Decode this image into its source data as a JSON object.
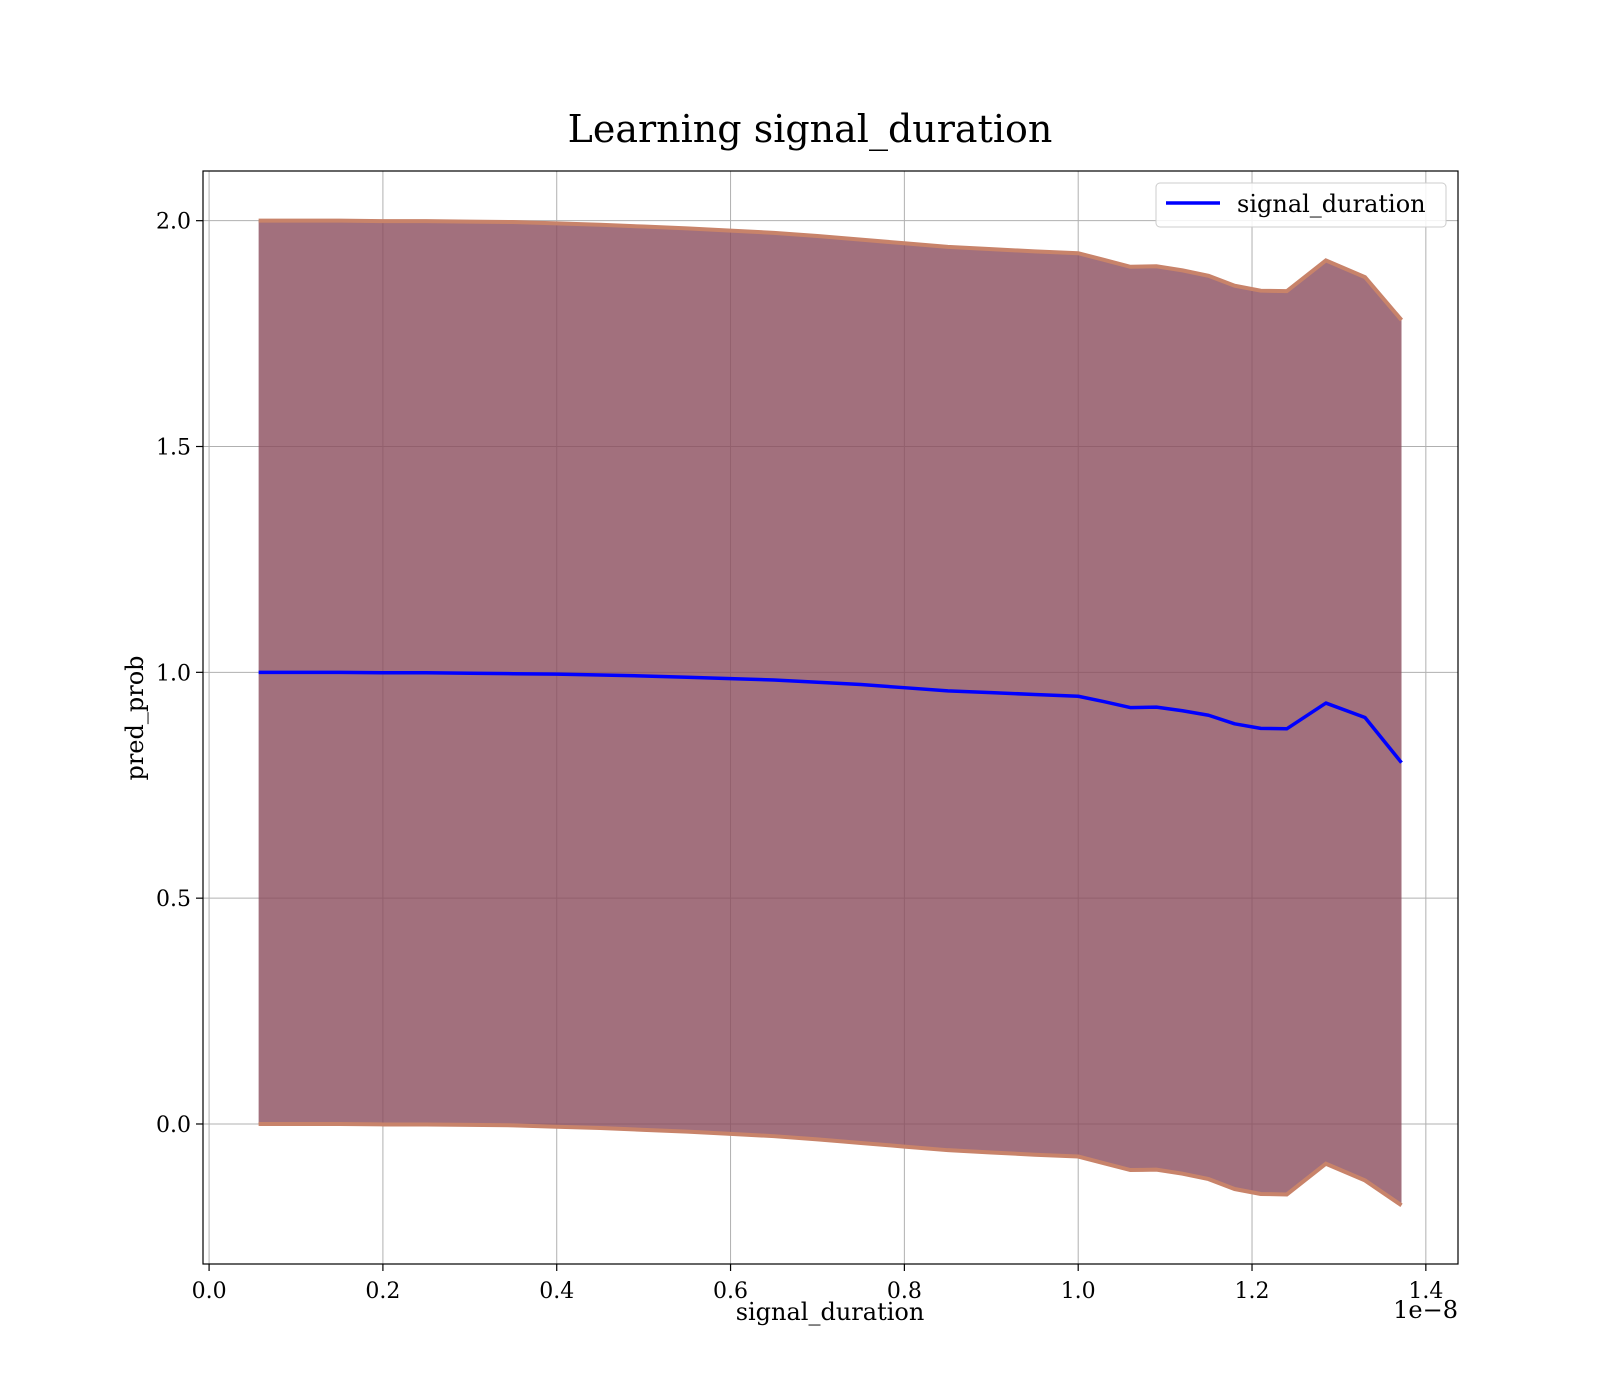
{
  "chart_data": {
    "type": "line",
    "title": "Learning signal_duration",
    "xlabel": "signal_duration",
    "ylabel": "pred_prob",
    "x_offset_label": "1e−8",
    "xlim": [
      -0.007,
      1.437
    ],
    "ylim": [
      -0.31,
      2.11
    ],
    "x_ticks": [
      0.0,
      0.2,
      0.4,
      0.6,
      0.8,
      1.0,
      1.2,
      1.4
    ],
    "x_tick_labels": [
      "0.0",
      "0.2",
      "0.4",
      "0.6",
      "0.8",
      "1.0",
      "1.2",
      "1.4"
    ],
    "y_ticks": [
      0.0,
      0.5,
      1.0,
      1.5,
      2.0
    ],
    "y_tick_labels": [
      "0.0",
      "0.5",
      "1.0",
      "1.5",
      "2.0"
    ],
    "grid": true,
    "legend_position": "top-right",
    "series": [
      {
        "name": "signal_duration",
        "color": "#0000ff",
        "x": [
          0.057,
          0.1,
          0.15,
          0.2,
          0.25,
          0.3,
          0.35,
          0.4,
          0.45,
          0.5,
          0.55,
          0.6,
          0.65,
          0.7,
          0.75,
          0.8,
          0.85,
          0.9,
          0.95,
          1.0,
          1.03,
          1.06,
          1.09,
          1.12,
          1.15,
          1.18,
          1.21,
          1.24,
          1.285,
          1.33,
          1.372
        ],
        "y": [
          1.0,
          1.0,
          1.0,
          0.999,
          0.999,
          0.998,
          0.997,
          0.996,
          0.994,
          0.992,
          0.989,
          0.986,
          0.983,
          0.978,
          0.973,
          0.966,
          0.959,
          0.955,
          0.951,
          0.947,
          0.935,
          0.922,
          0.923,
          0.915,
          0.905,
          0.886,
          0.876,
          0.875,
          0.932,
          0.9,
          0.8
        ]
      }
    ],
    "band": {
      "color": "#8b4c5c",
      "edge_color": "#c8836a",
      "upper": [
        2.0,
        2.0,
        2.0,
        1.999,
        1.999,
        1.998,
        1.997,
        1.994,
        1.991,
        1.987,
        1.983,
        1.978,
        1.973,
        1.966,
        1.958,
        1.95,
        1.942,
        1.937,
        1.932,
        1.928,
        1.913,
        1.898,
        1.899,
        1.89,
        1.878,
        1.856,
        1.845,
        1.844,
        1.912,
        1.875,
        1.78
      ],
      "lower": [
        0.0,
        0.0,
        0.0,
        -0.001,
        -0.001,
        -0.002,
        -0.003,
        -0.006,
        -0.009,
        -0.013,
        -0.017,
        -0.022,
        -0.027,
        -0.034,
        -0.042,
        -0.05,
        -0.058,
        -0.063,
        -0.068,
        -0.072,
        -0.087,
        -0.102,
        -0.101,
        -0.11,
        -0.122,
        -0.144,
        -0.155,
        -0.156,
        -0.088,
        -0.125,
        -0.18
      ]
    }
  }
}
